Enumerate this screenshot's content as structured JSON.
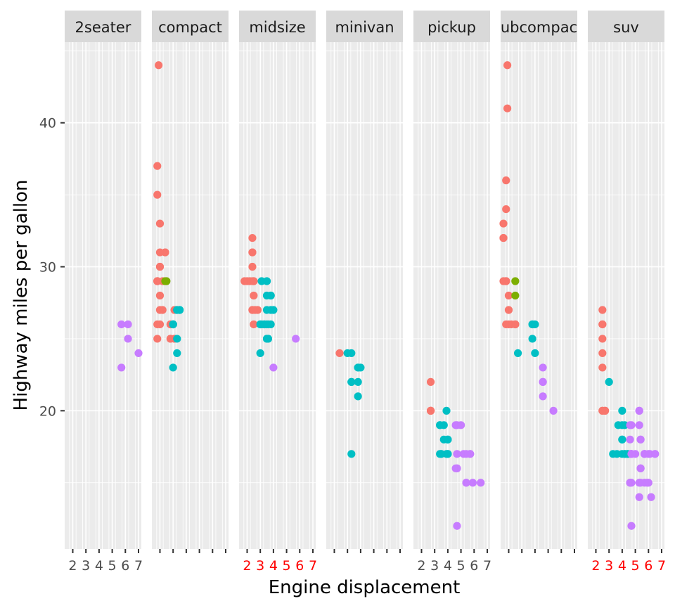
{
  "chart_data": {
    "type": "scatter",
    "title": "",
    "xlabel": "Engine displacement",
    "ylabel": "Highway miles per gallon",
    "facet_by": "class",
    "panels": [
      "2seater",
      "compact",
      "midsize",
      "minivan",
      "pickup",
      "subcompact",
      "suv"
    ],
    "panel_labels": [
      "2seater",
      "compact",
      "midsize",
      "minivan",
      "pickup",
      "ubcompac",
      "suv"
    ],
    "xlim": [
      1.6,
      7.0
    ],
    "ylim": [
      10.4,
      45.6
    ],
    "y_ticks": [
      20,
      30,
      40
    ],
    "y_tick_labels": [
      "20",
      "30",
      "40"
    ],
    "x_ticks": [
      2,
      3,
      4,
      5,
      6,
      7
    ],
    "x_tick_labels": [
      "2",
      "3",
      "4",
      "5",
      "6",
      "7"
    ],
    "x_tick_label_colors": [
      "#4d4d4d",
      "none",
      "#ff0000",
      "none",
      "#4d4d4d",
      "none",
      "#ff0000"
    ],
    "grid": true,
    "legend": "none",
    "colors": {
      "4": "#f8766d",
      "f": "#00bfc4",
      "r": "#c77cff",
      "hybrid": "#7cae00",
      "panel_bg": "#ebebeb",
      "strip_bg": "#d9d9d9",
      "grid_line": "#ffffff"
    },
    "series": [
      {
        "panel": "2seater",
        "points": [
          [
            5.7,
            26
          ],
          [
            5.7,
            23
          ],
          [
            6.2,
            26
          ],
          [
            6.2,
            25
          ],
          [
            7.0,
            24
          ]
        ]
      },
      {
        "panel": "compact",
        "points": [
          [
            1.8,
            29
          ],
          [
            1.8,
            29
          ],
          [
            2.0,
            31
          ],
          [
            2.0,
            30
          ],
          [
            2.8,
            26
          ],
          [
            2.8,
            26
          ],
          [
            3.1,
            27
          ],
          [
            1.8,
            26
          ],
          [
            1.8,
            25
          ],
          [
            2.0,
            28
          ],
          [
            2.0,
            27
          ],
          [
            2.8,
            25
          ],
          [
            2.8,
            25
          ],
          [
            3.1,
            25
          ],
          [
            3.1,
            25
          ],
          [
            2.2,
            27
          ],
          [
            2.2,
            29
          ],
          [
            2.4,
            31
          ],
          [
            2.4,
            31
          ],
          [
            3.0,
            26
          ],
          [
            3.0,
            26
          ],
          [
            3.3,
            27
          ],
          [
            1.8,
            29
          ],
          [
            1.8,
            29
          ],
          [
            1.8,
            35
          ],
          [
            1.8,
            37
          ],
          [
            1.9,
            44
          ],
          [
            2.0,
            30
          ],
          [
            2.0,
            33
          ],
          [
            2.0,
            26
          ],
          [
            2.5,
            29
          ],
          [
            2.4,
            29
          ],
          [
            3.3,
            25
          ],
          [
            3.3,
            24
          ],
          [
            3.0,
            26
          ],
          [
            3.0,
            26
          ],
          [
            3.5,
            27
          ],
          [
            3.0,
            23
          ],
          [
            3.0,
            26
          ],
          [
            3.5,
            27
          ],
          [
            3.3,
            27
          ]
        ]
      },
      {
        "panel": "midsize",
        "points": [
          [
            2.4,
            27
          ],
          [
            2.4,
            30
          ],
          [
            3.1,
            26
          ],
          [
            3.5,
            29
          ],
          [
            3.6,
            26
          ],
          [
            2.4,
            27
          ],
          [
            3.0,
            26
          ],
          [
            3.3,
            26
          ],
          [
            3.3,
            26
          ],
          [
            3.8,
            28
          ],
          [
            3.8,
            26
          ],
          [
            3.8,
            27
          ],
          [
            4.0,
            27
          ],
          [
            5.7,
            25
          ],
          [
            4.0,
            23
          ],
          [
            2.5,
            29
          ],
          [
            2.5,
            29
          ],
          [
            2.5,
            28
          ],
          [
            3.5,
            25
          ],
          [
            3.5,
            26
          ],
          [
            3.0,
            24
          ],
          [
            3.5,
            28
          ],
          [
            2.5,
            26
          ],
          [
            2.2,
            29
          ],
          [
            2.4,
            31
          ],
          [
            2.4,
            29
          ],
          [
            2.4,
            31
          ],
          [
            3.0,
            26
          ],
          [
            3.3,
            26
          ],
          [
            3.5,
            25
          ],
          [
            3.1,
            29
          ],
          [
            3.8,
            28
          ],
          [
            1.8,
            29
          ],
          [
            2.0,
            29
          ],
          [
            2.8,
            27
          ],
          [
            3.5,
            27
          ],
          [
            3.6,
            25
          ],
          [
            3.6,
            25
          ],
          [
            2.4,
            32
          ],
          [
            2.6,
            27
          ]
        ]
      },
      {
        "panel": "minivan",
        "points": [
          [
            2.4,
            24
          ],
          [
            3.0,
            24
          ],
          [
            3.3,
            22
          ],
          [
            3.3,
            22
          ],
          [
            3.3,
            24
          ],
          [
            3.3,
            17
          ],
          [
            3.8,
            22
          ],
          [
            3.8,
            21
          ],
          [
            3.8,
            23
          ],
          [
            4.0,
            23
          ],
          [
            3.8,
            23
          ]
        ]
      },
      {
        "panel": "pickup",
        "points": [
          [
            2.7,
            20
          ],
          [
            2.7,
            22
          ],
          [
            3.4,
            19
          ],
          [
            3.4,
            19
          ],
          [
            4.0,
            18
          ],
          [
            4.0,
            17
          ],
          [
            3.7,
            19
          ],
          [
            3.7,
            18
          ],
          [
            3.9,
            17
          ],
          [
            4.7,
            17
          ],
          [
            4.7,
            12
          ],
          [
            5.2,
            17
          ],
          [
            5.7,
            17
          ],
          [
            5.9,
            15
          ],
          [
            4.7,
            16
          ],
          [
            5.7,
            17
          ],
          [
            6.5,
            15
          ],
          [
            4.6,
            16
          ],
          [
            5.4,
            17
          ],
          [
            5.4,
            15
          ],
          [
            5.0,
            19
          ],
          [
            5.4,
            15
          ],
          [
            3.9,
            20
          ],
          [
            3.4,
            17
          ],
          [
            4.0,
            17
          ],
          [
            4.7,
            19
          ],
          [
            4.7,
            16
          ],
          [
            3.5,
            17
          ],
          [
            3.5,
            17
          ],
          [
            4.6,
            19
          ],
          [
            4.0,
            18
          ],
          [
            2.7,
            20
          ],
          [
            2.7,
            20
          ]
        ]
      },
      {
        "panel": "subcompact",
        "points": [
          [
            3.8,
            26
          ],
          [
            3.8,
            25
          ],
          [
            4.0,
            26
          ],
          [
            4.6,
            23
          ],
          [
            4.6,
            22
          ],
          [
            4.6,
            21
          ],
          [
            5.4,
            20
          ],
          [
            1.8,
            29
          ],
          [
            1.8,
            26
          ],
          [
            1.8,
            29
          ],
          [
            2.0,
            26
          ],
          [
            2.0,
            28
          ],
          [
            2.0,
            27
          ],
          [
            1.6,
            33
          ],
          [
            1.6,
            32
          ],
          [
            1.6,
            32
          ],
          [
            1.6,
            29
          ],
          [
            1.8,
            36
          ],
          [
            1.8,
            34
          ],
          [
            1.8,
            29
          ],
          [
            1.9,
            44
          ],
          [
            1.9,
            41
          ],
          [
            2.5,
            26
          ],
          [
            2.2,
            26
          ],
          [
            2.5,
            26
          ],
          [
            2.5,
            26
          ],
          [
            2.5,
            29
          ],
          [
            2.5,
            28
          ],
          [
            2.7,
            24
          ],
          [
            4.0,
            24
          ],
          [
            4.6,
            22
          ],
          [
            3.8,
            26
          ]
        ]
      },
      {
        "panel": "suv",
        "points": [
          [
            5.3,
            20
          ],
          [
            5.3,
            15
          ],
          [
            5.3,
            20
          ],
          [
            5.7,
            17
          ],
          [
            6.0,
            17
          ],
          [
            5.3,
            19
          ],
          [
            5.7,
            17
          ],
          [
            6.5,
            17
          ],
          [
            3.7,
            19
          ],
          [
            4.7,
            17
          ],
          [
            4.7,
            12
          ],
          [
            5.7,
            15
          ],
          [
            6.1,
            17
          ],
          [
            4.0,
            18
          ],
          [
            4.2,
            19
          ],
          [
            4.4,
            17
          ],
          [
            4.6,
            15
          ],
          [
            5.4,
            16
          ],
          [
            5.4,
            18
          ],
          [
            4.6,
            18
          ],
          [
            5.4,
            16
          ],
          [
            5.7,
            17
          ],
          [
            4.0,
            19
          ],
          [
            4.6,
            17
          ],
          [
            4.7,
            19
          ],
          [
            4.7,
            17
          ],
          [
            2.5,
            25
          ],
          [
            2.5,
            27
          ],
          [
            2.5,
            23
          ],
          [
            2.5,
            26
          ],
          [
            4.2,
            17
          ],
          [
            5.4,
            18
          ],
          [
            3.0,
            22
          ],
          [
            3.3,
            17
          ],
          [
            4.2,
            17
          ],
          [
            4.7,
            17
          ],
          [
            6.2,
            14
          ],
          [
            5.0,
            17
          ],
          [
            6.5,
            17
          ],
          [
            4.0,
            18
          ],
          [
            4.4,
            17
          ],
          [
            4.6,
            19
          ],
          [
            5.4,
            15
          ],
          [
            5.4,
            16
          ],
          [
            4.0,
            20
          ],
          [
            2.5,
            20
          ],
          [
            2.7,
            20
          ],
          [
            2.5,
            24
          ],
          [
            2.5,
            26
          ],
          [
            5.9,
            15
          ],
          [
            5.7,
            17
          ],
          [
            4.7,
            15
          ],
          [
            6.0,
            15
          ],
          [
            4.7,
            17
          ],
          [
            3.6,
            17
          ],
          [
            4.6,
            15
          ],
          [
            2.7,
            20
          ],
          [
            5.3,
            14
          ],
          [
            4.0,
            17
          ],
          [
            2.5,
            20
          ]
        ]
      }
    ]
  }
}
